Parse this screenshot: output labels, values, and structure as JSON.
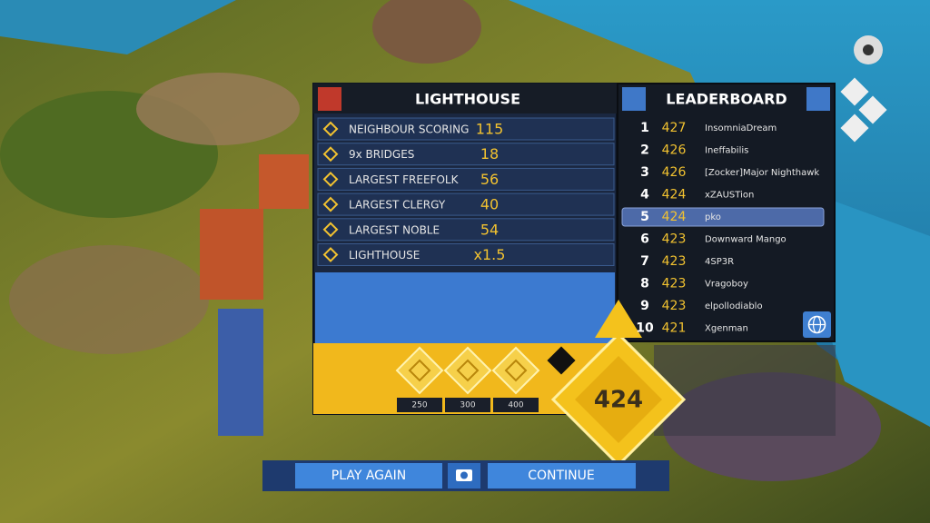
{
  "score_panel": {
    "title": "LIGHTHOUSE",
    "rows": [
      {
        "label": "NEIGHBOUR SCORING",
        "value": 115
      },
      {
        "label": "9x BRIDGES",
        "value": 18
      },
      {
        "label": "LARGEST FREEFOLK",
        "value": 56
      },
      {
        "label": "LARGEST CLERGY",
        "value": 40
      },
      {
        "label": "LARGEST NOBLE",
        "value": 54
      },
      {
        "label": "LIGHTHOUSE",
        "value": "x1.5"
      }
    ],
    "thresholds": [
      250,
      300,
      400
    ]
  },
  "final_score": 424,
  "leaderboard": {
    "title": "LEADERBOARD",
    "entries": [
      {
        "rank": 1,
        "score": 427,
        "name": "InsomniaDream"
      },
      {
        "rank": 2,
        "score": 426,
        "name": "Ineffabilis"
      },
      {
        "rank": 3,
        "score": 426,
        "name": "[Zocker]Major Nighthawk"
      },
      {
        "rank": 4,
        "score": 424,
        "name": "xZAUSTion"
      },
      {
        "rank": 5,
        "score": 424,
        "name": "pko",
        "highlight": true
      },
      {
        "rank": 6,
        "score": 423,
        "name": "Downward Mango"
      },
      {
        "rank": 7,
        "score": 423,
        "name": "4SP3R"
      },
      {
        "rank": 8,
        "score": 423,
        "name": "Vragoboy"
      },
      {
        "rank": 9,
        "score": 423,
        "name": "elpollodiablo"
      },
      {
        "rank": 10,
        "score": 421,
        "name": "Xgenman"
      }
    ]
  },
  "buttons": {
    "play_again": "PLAY AGAIN",
    "continue": "CONTINUE"
  }
}
